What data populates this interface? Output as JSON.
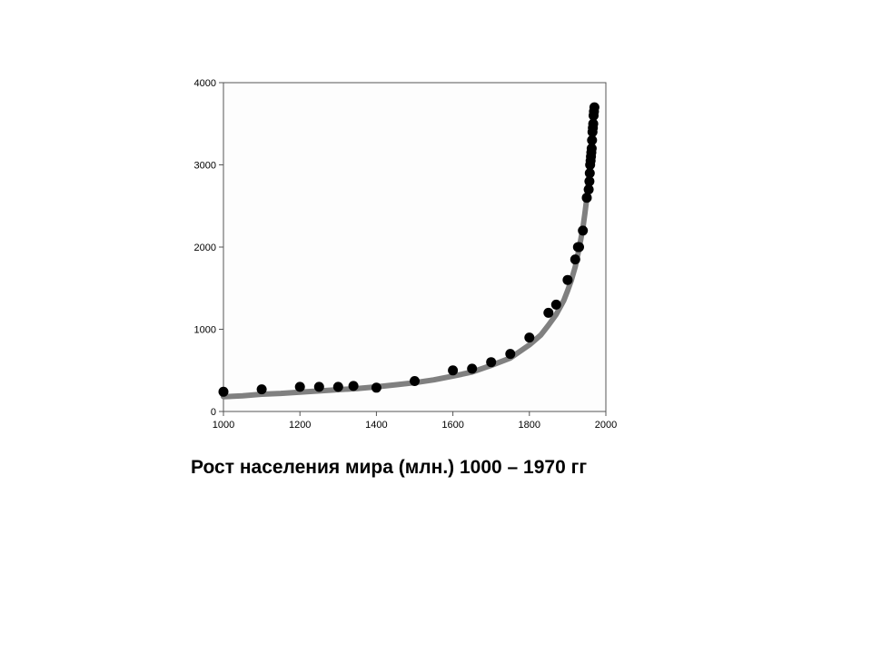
{
  "chart_data": {
    "type": "scatter",
    "title": "Рост населения мира (млн.) 1000 – 1970 гг",
    "xlabel": "",
    "ylabel": "",
    "xlim": [
      1000,
      2000
    ],
    "ylim": [
      0,
      4000
    ],
    "x_ticks": [
      "1000",
      "1200",
      "1400",
      "1600",
      "1800",
      "2000"
    ],
    "y_ticks": [
      "0",
      "1000",
      "2000",
      "3000",
      "4000"
    ],
    "grid": false,
    "legend": "none",
    "colors": {
      "points": "#000000",
      "curve": "#808080",
      "plot_bg": "#fdfdfd",
      "frame": "#555555"
    },
    "series": [
      {
        "kind": "points",
        "x": [
          1000,
          1100,
          1200,
          1250,
          1300,
          1340,
          1400,
          1500,
          1600,
          1650,
          1700,
          1750,
          1800,
          1850,
          1870,
          1900,
          1920,
          1927,
          1930,
          1940,
          1950,
          1955,
          1957,
          1958,
          1959,
          1960,
          1961,
          1962,
          1963,
          1964,
          1965,
          1966,
          1967,
          1968,
          1969,
          1970
        ],
        "y": [
          240,
          270,
          300,
          300,
          300,
          310,
          290,
          370,
          500,
          520,
          600,
          700,
          900,
          1200,
          1300,
          1600,
          1850,
          2000,
          2000,
          2200,
          2600,
          2700,
          2800,
          2900,
          3000,
          3050,
          3100,
          3150,
          3200,
          3300,
          3400,
          3450,
          3500,
          3600,
          3650,
          3700
        ]
      },
      {
        "kind": "curve",
        "x": [
          1000,
          1050,
          1100,
          1150,
          1200,
          1250,
          1300,
          1350,
          1400,
          1450,
          1500,
          1550,
          1600,
          1650,
          1700,
          1750,
          1800,
          1830,
          1850,
          1870,
          1890,
          1900,
          1910,
          1920,
          1930,
          1940,
          1945,
          1950,
          1955,
          1960,
          1965,
          1970
        ],
        "y": [
          180,
          190,
          210,
          220,
          235,
          250,
          265,
          280,
          300,
          325,
          350,
          385,
          430,
          480,
          560,
          650,
          810,
          930,
          1050,
          1180,
          1350,
          1470,
          1600,
          1760,
          1980,
          2230,
          2400,
          2590,
          2820,
          3080,
          3370,
          3720
        ]
      }
    ]
  }
}
